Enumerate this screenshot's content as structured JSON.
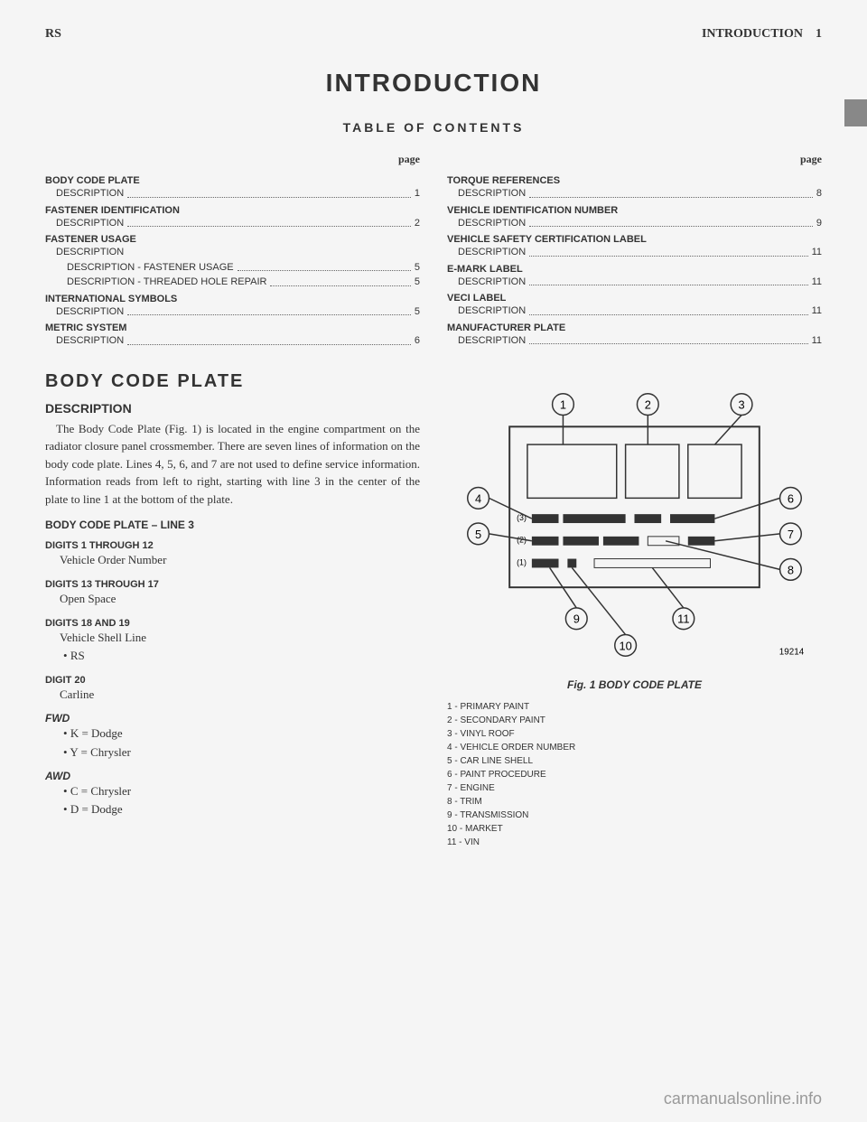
{
  "header": {
    "left": "RS",
    "right_label": "INTRODUCTION",
    "right_page": "1"
  },
  "title": "INTRODUCTION",
  "toc_title": "TABLE OF CONTENTS",
  "page_label": "page",
  "toc_left": [
    {
      "type": "section",
      "text": "BODY CODE PLATE"
    },
    {
      "type": "item",
      "text": "DESCRIPTION",
      "page": "1"
    },
    {
      "type": "section",
      "text": "FASTENER IDENTIFICATION"
    },
    {
      "type": "item",
      "text": "DESCRIPTION",
      "page": "2"
    },
    {
      "type": "section",
      "text": "FASTENER USAGE"
    },
    {
      "type": "item-noPage",
      "text": "DESCRIPTION"
    },
    {
      "type": "nested",
      "text": "DESCRIPTION - FASTENER USAGE",
      "page": "5"
    },
    {
      "type": "nested",
      "text": "DESCRIPTION - THREADED HOLE REPAIR",
      "page": "5"
    },
    {
      "type": "section",
      "text": "INTERNATIONAL SYMBOLS"
    },
    {
      "type": "item",
      "text": "DESCRIPTION",
      "page": "5"
    },
    {
      "type": "section",
      "text": "METRIC SYSTEM"
    },
    {
      "type": "item",
      "text": "DESCRIPTION",
      "page": "6"
    }
  ],
  "toc_right": [
    {
      "type": "section",
      "text": "TORQUE REFERENCES"
    },
    {
      "type": "item",
      "text": "DESCRIPTION",
      "page": "8"
    },
    {
      "type": "section",
      "text": "VEHICLE IDENTIFICATION NUMBER"
    },
    {
      "type": "item",
      "text": "DESCRIPTION",
      "page": "9"
    },
    {
      "type": "section",
      "text": "VEHICLE SAFETY CERTIFICATION LABEL"
    },
    {
      "type": "item",
      "text": "DESCRIPTION",
      "page": "11"
    },
    {
      "type": "section",
      "text": "E-MARK LABEL"
    },
    {
      "type": "item",
      "text": "DESCRIPTION",
      "page": "11"
    },
    {
      "type": "section",
      "text": "VECI LABEL"
    },
    {
      "type": "item",
      "text": "DESCRIPTION",
      "page": "11"
    },
    {
      "type": "section",
      "text": "MANUFACTURER PLATE"
    },
    {
      "type": "item",
      "text": "DESCRIPTION",
      "page": "11"
    }
  ],
  "section": {
    "title": "BODY CODE PLATE",
    "subtitle": "DESCRIPTION",
    "body": "The Body Code Plate (Fig. 1) is located in the engine compartment on the radiator closure panel crossmember. There are seven lines of information on the body code plate. Lines 4, 5, 6, and 7 are not used to define service information. Information reads from left to right, starting with line 3 in the center of the plate to line 1 at the bottom of the plate.",
    "line3_heading": "BODY CODE PLATE – LINE 3",
    "digits": [
      {
        "label": "DIGITS 1 THROUGH 12",
        "value": "Vehicle Order Number"
      },
      {
        "label": "DIGITS 13 THROUGH 17",
        "value": "Open Space"
      },
      {
        "label": "DIGITS 18 AND 19",
        "value": "Vehicle Shell Line",
        "bullets": [
          "RS"
        ]
      },
      {
        "label": "DIGIT 20",
        "value": "Carline"
      }
    ],
    "fwd": {
      "heading": "FWD",
      "bullets": [
        "K = Dodge",
        "Y = Chrysler"
      ]
    },
    "awd": {
      "heading": "AWD",
      "bullets": [
        "C = Chrysler",
        "D = Dodge"
      ]
    }
  },
  "figure": {
    "caption": "Fig. 1 BODY CODE PLATE",
    "diagram_id": "19214",
    "legend": [
      "1 - PRIMARY PAINT",
      "2 - SECONDARY PAINT",
      "3 - VINYL ROOF",
      "4 - VEHICLE ORDER NUMBER",
      "5 - CAR LINE SHELL",
      "6 - PAINT PROCEDURE",
      "7 - ENGINE",
      "8 - TRIM",
      "9 - TRANSMISSION",
      "10 - MARKET",
      "11 - VIN"
    ],
    "callouts": [
      "1",
      "2",
      "3",
      "4",
      "5",
      "6",
      "7",
      "8",
      "9",
      "10",
      "11"
    ],
    "colors": {
      "stroke": "#333333",
      "fill": "#f5f5f5",
      "background": "#f5f5f5"
    }
  },
  "watermark": "carmanualsonline.info"
}
